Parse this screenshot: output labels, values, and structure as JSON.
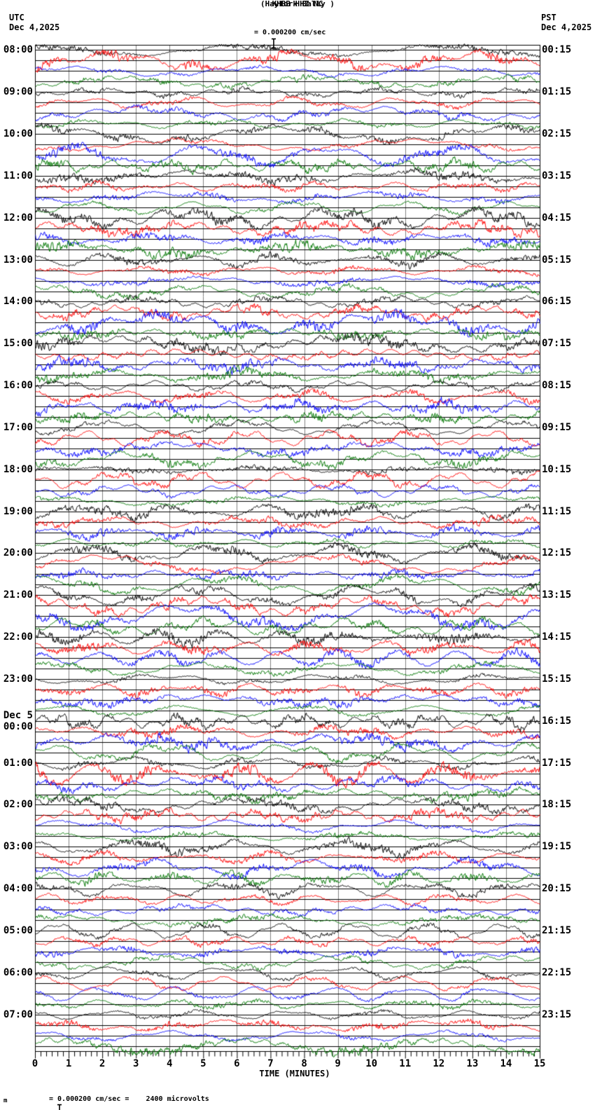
{
  "header": {
    "title": "KHBB HHZ NC",
    "subtitle": "(Hayfork Bally )",
    "scale_label": "= 0.000200 cm/sec",
    "left_timezone": "UTC",
    "left_date": "Dec 4,2025",
    "right_timezone": "PST",
    "right_date": "Dec 4,2025"
  },
  "footer": {
    "axis_label": "TIME (MINUTES)",
    "scale_glyph": "m",
    "scale_note": "= 0.000200 cm/sec =    2400 microvolts"
  },
  "chart_data": {
    "type": "line",
    "subtype": "helicorder-webicorder-seismogram",
    "title": "KHBB HHZ NC (Hayfork Bally )",
    "xlabel": "TIME (MINUTES)",
    "x_range": [
      0,
      15
    ],
    "x_major_tick": 1,
    "x_minor_divisions": 6,
    "x_ticks": [
      "0",
      "1",
      "2",
      "3",
      "4",
      "5",
      "6",
      "7",
      "8",
      "9",
      "10",
      "11",
      "12",
      "13",
      "14",
      "15"
    ],
    "minutes_per_line": 15,
    "lines_per_hour": 4,
    "trace_colors": [
      "#000000",
      "#ff0000",
      "#0000ff",
      "#007700"
    ],
    "grid_color": "#808080",
    "background": "#ffffff",
    "noise_seed": 20251204,
    "utc_day_break_row": 16,
    "utc_day_break_label": "Dec 5",
    "rows": [
      {
        "utc": "08:00",
        "pst": "00:15",
        "amp": 1.15
      },
      {
        "utc": "09:00",
        "pst": "01:15",
        "amp": 1.0
      },
      {
        "utc": "10:00",
        "pst": "02:15",
        "amp": 1.1
      },
      {
        "utc": "11:00",
        "pst": "03:15",
        "amp": 1.25
      },
      {
        "utc": "12:00",
        "pst": "04:15",
        "amp": 1.25
      },
      {
        "utc": "13:00",
        "pst": "05:15",
        "amp": 1.0
      },
      {
        "utc": "14:00",
        "pst": "06:15",
        "amp": 1.3
      },
      {
        "utc": "15:00",
        "pst": "07:15",
        "amp": 1.3
      },
      {
        "utc": "16:00",
        "pst": "08:15",
        "amp": 1.1
      },
      {
        "utc": "17:00",
        "pst": "09:15",
        "amp": 1.0
      },
      {
        "utc": "18:00",
        "pst": "10:15",
        "amp": 1.0
      },
      {
        "utc": "19:00",
        "pst": "11:15",
        "amp": 1.0
      },
      {
        "utc": "20:00",
        "pst": "12:15",
        "amp": 1.1
      },
      {
        "utc": "21:00",
        "pst": "13:15",
        "amp": 1.35
      },
      {
        "utc": "22:00",
        "pst": "14:15",
        "amp": 1.1
      },
      {
        "utc": "23:00",
        "pst": "15:15",
        "amp": 0.95
      },
      {
        "utc": "00:00",
        "pst": "16:15",
        "amp": 1.3
      },
      {
        "utc": "01:00",
        "pst": "17:15",
        "amp": 1.3
      },
      {
        "utc": "02:00",
        "pst": "18:15",
        "amp": 1.3
      },
      {
        "utc": "03:00",
        "pst": "19:15",
        "amp": 1.2
      },
      {
        "utc": "04:00",
        "pst": "20:15",
        "amp": 1.05
      },
      {
        "utc": "05:00",
        "pst": "21:15",
        "amp": 0.9
      },
      {
        "utc": "06:00",
        "pst": "22:15",
        "amp": 0.9
      },
      {
        "utc": "07:00",
        "pst": "23:15",
        "amp": 1.0
      }
    ]
  }
}
